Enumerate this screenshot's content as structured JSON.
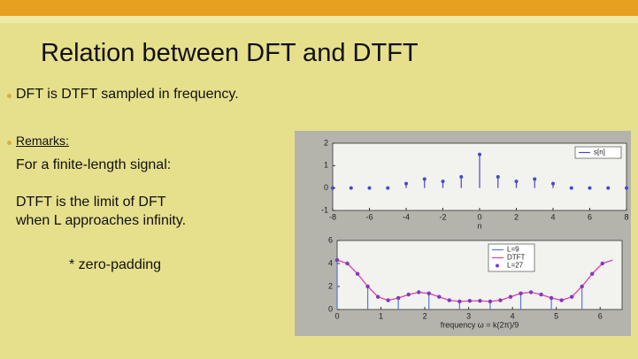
{
  "title": "Relation between DFT and DTFT",
  "bullets": [
    "DFT is DTFT sampled in frequency."
  ],
  "remarks": {
    "label": "Remarks:",
    "lines": [
      "For a finite-length signal:",
      "DTFT is the limit of DFT",
      "when L approaches infinity."
    ],
    "note": "* zero-padding"
  },
  "chart_data": [
    {
      "type": "stem",
      "xlabel": "n",
      "x": [
        -8,
        -7,
        -6,
        -5,
        -4,
        -3,
        -2,
        -1,
        0,
        1,
        2,
        3,
        4,
        5,
        6,
        7,
        8
      ],
      "series": [
        {
          "name": "s[n]",
          "color": "#4848c8",
          "kind": "stem",
          "values": [
            0,
            0,
            0,
            0,
            0.2,
            0.4,
            0.3,
            0.5,
            1.5,
            0.5,
            0.3,
            0.4,
            0.2,
            0,
            0,
            0,
            0
          ]
        }
      ],
      "xlim": [
        -8,
        8
      ],
      "xticks": [
        -8,
        -6,
        -4,
        -2,
        0,
        2,
        4,
        6,
        8
      ],
      "ylim": [
        -1,
        2
      ],
      "yticks": [
        -1,
        0,
        1,
        2
      ]
    },
    {
      "type": "line",
      "xlabel": "frequency ω = k(2π)/9",
      "series": [
        {
          "name": "L=9",
          "color": "#5878d0",
          "kind": "stem",
          "x": [
            0,
            0.698,
            1.396,
            2.094,
            2.793,
            3.491,
            4.189,
            4.887,
            5.585
          ],
          "values": [
            4.3,
            2.0,
            1.0,
            1.4,
            0.7,
            0.7,
            1.4,
            1.0,
            2.0
          ]
        },
        {
          "name": "DTFT",
          "color": "#e040a8",
          "kind": "line",
          "x": [
            0,
            0.233,
            0.465,
            0.698,
            0.931,
            1.164,
            1.396,
            1.629,
            1.862,
            2.094,
            2.327,
            2.56,
            2.793,
            3.025,
            3.258,
            3.491,
            3.723,
            3.956,
            4.189,
            4.422,
            4.654,
            4.887,
            5.12,
            5.353,
            5.585,
            5.818,
            6.051,
            6.283
          ],
          "values": [
            4.3,
            4.0,
            3.1,
            2.0,
            1.1,
            0.8,
            1.0,
            1.3,
            1.5,
            1.4,
            1.1,
            0.8,
            0.7,
            0.75,
            0.75,
            0.7,
            0.8,
            1.1,
            1.4,
            1.5,
            1.3,
            1.0,
            0.8,
            1.1,
            2.0,
            3.1,
            4.0,
            4.3
          ]
        },
        {
          "name": "L=27",
          "color": "#8038c0",
          "kind": "marker",
          "x": [
            0,
            0.233,
            0.465,
            0.698,
            0.931,
            1.164,
            1.396,
            1.629,
            1.862,
            2.094,
            2.327,
            2.56,
            2.793,
            3.025,
            3.258,
            3.491,
            3.723,
            3.956,
            4.189,
            4.422,
            4.654,
            4.887,
            5.12,
            5.353,
            5.585,
            5.818,
            6.051
          ],
          "values": [
            4.3,
            4.0,
            3.1,
            2.0,
            1.1,
            0.8,
            1.0,
            1.3,
            1.5,
            1.4,
            1.1,
            0.8,
            0.7,
            0.75,
            0.75,
            0.7,
            0.8,
            1.1,
            1.4,
            1.5,
            1.3,
            1.0,
            0.8,
            1.1,
            2.0,
            3.1,
            4.0
          ]
        }
      ],
      "xlim": [
        0,
        6.5
      ],
      "xticks": [
        0,
        1,
        2,
        3,
        4,
        5,
        6
      ],
      "ylim": [
        0,
        6
      ],
      "yticks": [
        0,
        2,
        4,
        6
      ]
    }
  ]
}
